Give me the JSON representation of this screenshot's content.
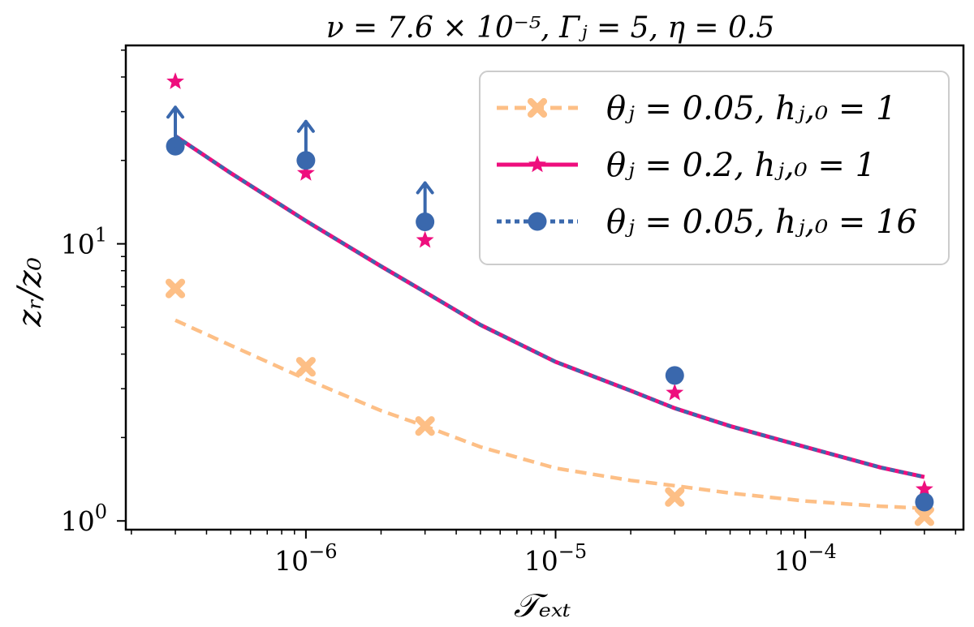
{
  "chart_data": {
    "type": "line",
    "title": "ν = 7.6 × 10⁻⁵, Γⱼ = 5, η = 0.5",
    "xlabel": "𝒯ₑₓₜ",
    "ylabel": "zᵣ/z₀",
    "xscale": "log",
    "yscale": "log",
    "xlim": [
      1.9e-07,
      0.00043
    ],
    "ylim": [
      0.93,
      52
    ],
    "x_ticks": [
      {
        "value": 1e-06,
        "base": "10",
        "exp": "−6"
      },
      {
        "value": 1e-05,
        "base": "10",
        "exp": "−5"
      },
      {
        "value": 0.0001,
        "base": "10",
        "exp": "−4"
      }
    ],
    "y_ticks": [
      {
        "value": 1,
        "base": "10",
        "exp": "0"
      },
      {
        "value": 10,
        "base": "10",
        "exp": "1"
      }
    ],
    "legend_position": "top-right",
    "series": [
      {
        "name": "θⱼ = 0.05,  hⱼ,₀ = 1",
        "color": "#fdbf86",
        "linestyle": "dashed",
        "marker": "x",
        "curve_x": [
          3e-07,
          5e-07,
          1e-06,
          2e-06,
          3e-06,
          5e-06,
          1e-05,
          2e-05,
          3e-05,
          5e-05,
          0.0001,
          0.0002,
          0.0003
        ],
        "curve_y": [
          5.3,
          4.3,
          3.25,
          2.5,
          2.2,
          1.85,
          1.55,
          1.4,
          1.34,
          1.26,
          1.18,
          1.13,
          1.11
        ],
        "points_x": [
          3e-07,
          1e-06,
          3e-06,
          3e-05,
          0.0003
        ],
        "points_y": [
          6.9,
          3.6,
          2.2,
          1.22,
          1.04
        ]
      },
      {
        "name": "θⱼ = 0.2,   hⱼ,₀ = 1",
        "color": "#ee0e7d",
        "linestyle": "solid",
        "marker": "star",
        "curve_x": [
          3e-07,
          5e-07,
          1e-06,
          2e-06,
          3e-06,
          5e-06,
          1e-05,
          2e-05,
          3e-05,
          5e-05,
          0.0001,
          0.0002,
          0.0003
        ],
        "curve_y": [
          24.5,
          18.0,
          12.1,
          8.3,
          6.7,
          5.1,
          3.75,
          2.95,
          2.55,
          2.2,
          1.85,
          1.56,
          1.44
        ],
        "points_x": [
          3e-07,
          1e-06,
          3e-06,
          3e-05,
          0.0003
        ],
        "points_y": [
          38.5,
          18.0,
          10.3,
          2.9,
          1.3
        ]
      },
      {
        "name": "θⱼ = 0.05,  hⱼ,₀ = 16",
        "color": "#3a68ad",
        "linestyle": "dotted",
        "marker": "circle",
        "curve_x": [
          3e-07,
          5e-07,
          1e-06,
          2e-06,
          3e-06,
          5e-06,
          1e-05,
          2e-05,
          3e-05,
          5e-05,
          0.0001,
          0.0002,
          0.0003
        ],
        "curve_y": [
          24.5,
          18.0,
          12.1,
          8.3,
          6.7,
          5.1,
          3.75,
          2.95,
          2.55,
          2.2,
          1.85,
          1.56,
          1.44
        ],
        "points_x": [
          3e-07,
          1e-06,
          3e-06,
          3e-05,
          0.0003
        ],
        "points_y": [
          22.5,
          20.0,
          12.0,
          3.35,
          1.17
        ],
        "lower_limit_arrows_at_x": [
          3e-07,
          1e-06,
          3e-06
        ]
      }
    ]
  }
}
